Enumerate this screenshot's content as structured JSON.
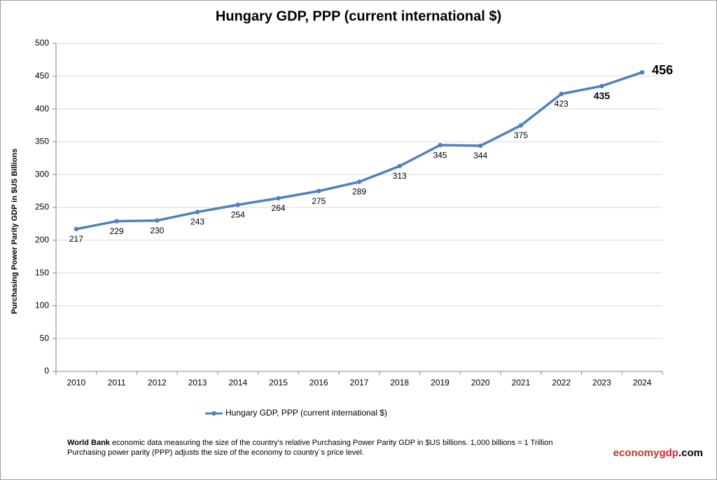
{
  "chart_data": {
    "type": "line",
    "title": "Hungary GDP, PPP (current international $)",
    "y_axis_label": "Purchasing Power Parity GDP in $US Billions",
    "x": [
      2010,
      2011,
      2012,
      2013,
      2014,
      2015,
      2016,
      2017,
      2018,
      2019,
      2020,
      2021,
      2022,
      2023,
      2024
    ],
    "series": [
      {
        "name": "Hungary GDP, PPP (current international $)",
        "color": "#4f81bd",
        "values": [
          217,
          229,
          230,
          243,
          254,
          264,
          275,
          289,
          313,
          345,
          344,
          375,
          423,
          435,
          456
        ]
      }
    ],
    "ylim": [
      0,
      500
    ],
    "yticks": [
      0,
      50,
      100,
      150,
      200,
      250,
      300,
      350,
      400,
      450,
      500
    ],
    "grid": true,
    "legend": "bottom",
    "footnote": {
      "bold": "World Bank",
      "line1": " economic data  measuring the size of the country's relative  Purchasing Power Parity GDP in $US billions. 1,000 billions = 1 Trillion",
      "line2": "Purchasing power parity (PPP) adjusts the size of the economy to country`s price level."
    },
    "brand": {
      "part1": "economy",
      "part2": "gdp",
      "part3": ".com"
    }
  }
}
